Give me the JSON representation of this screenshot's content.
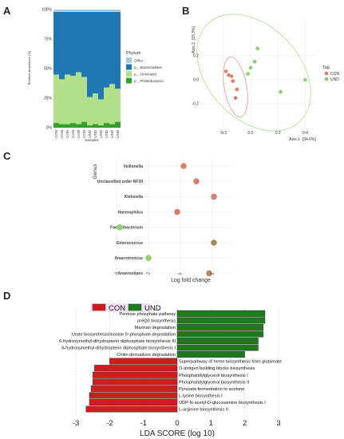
{
  "chart_data": [
    {
      "panel": "A",
      "type": "bar",
      "stacked": true,
      "xlabel": "Samples",
      "ylabel": "Relative abundance (%)",
      "ylim": [
        0,
        100
      ],
      "yticks": [
        "0%",
        "25%",
        "50%",
        "75%",
        "100%"
      ],
      "categories": [
        "CON",
        "CON",
        "CON",
        "CON",
        "CON",
        "CON",
        "UND",
        "UND",
        "UND",
        "UND",
        "UND",
        "UND"
      ],
      "legend_title": "Phylum",
      "series": [
        {
          "name": "p__Proteobacteria",
          "color": "#33a02c",
          "values": [
            4,
            3,
            3,
            4,
            3,
            5,
            2,
            3,
            2,
            4,
            3,
            5
          ]
        },
        {
          "name": "p__Firmicutes",
          "color": "#b2df8a",
          "values": [
            41,
            38,
            42,
            40,
            44,
            38,
            24,
            26,
            22,
            30,
            34,
            28
          ]
        },
        {
          "name": "p__Bacteroidetes",
          "color": "#1f78b4",
          "values": [
            53,
            57,
            53,
            54,
            51,
            55,
            72,
            69,
            74,
            64,
            61,
            65
          ]
        },
        {
          "name": "Other",
          "color": "#a6cee3",
          "values": [
            2,
            2,
            2,
            2,
            2,
            2,
            2,
            2,
            2,
            2,
            2,
            2
          ]
        }
      ]
    },
    {
      "panel": "B",
      "type": "scatter",
      "xlabel": "Axis.1",
      "xlabel_pct": "[34.6%]",
      "ylabel": "Axis.2",
      "ylabel_pct": "[15.3%]",
      "xticks": [
        -0.2,
        0.0,
        0.2,
        0.4
      ],
      "yticks": [
        -0.2,
        0.0,
        0.2
      ],
      "legend_title": "Tag",
      "series": [
        {
          "name": "CON",
          "color": "#e07b6e",
          "points": [
            [
              -0.16,
              0.04
            ],
            [
              -0.14,
              0.03
            ],
            [
              -0.13,
              -0.01
            ],
            [
              -0.1,
              -0.08
            ],
            [
              -0.11,
              -0.15
            ],
            [
              -0.18,
              0.07
            ]
          ]
        },
        {
          "name": "UND",
          "color": "#86cf6d",
          "points": [
            [
              0.05,
              0.26
            ],
            [
              0.03,
              0.15
            ],
            [
              0.0,
              0.1
            ],
            [
              -0.02,
              0.05
            ],
            [
              0.4,
              0.0
            ],
            [
              0.22,
              -0.1
            ]
          ]
        }
      ]
    },
    {
      "panel": "C",
      "type": "scatter",
      "ylabel": "Genus",
      "xlabel": "Log fold change",
      "xticks": [
        -4,
        -2,
        0,
        2
      ],
      "categories": [
        "Veillonella",
        "Unclassified order RF39",
        "Klebsiella",
        "Haemophilus",
        "Faecalibacterium",
        "Enterococcus",
        "Anaerotruncus",
        "Anaerostipes"
      ],
      "values": [
        0.2,
        1.0,
        2.1,
        -0.2,
        -3.8,
        2.1,
        -2.0,
        1.8
      ],
      "colors": [
        "#d8806e",
        "#d8806e",
        "#d8806e",
        "#d8806e",
        "#93cf74",
        "#a78a59",
        "#93cf74",
        "#b38a62"
      ]
    },
    {
      "panel": "D",
      "type": "bar",
      "orientation": "horizontal",
      "xlabel": "LDA SCORE (log 10)",
      "xlim": [
        -3,
        3
      ],
      "xticks": [
        -3,
        -2,
        -1,
        0,
        1,
        2,
        3
      ],
      "legend": [
        {
          "name": "CON",
          "color": "#d01c1c"
        },
        {
          "name": "UND",
          "color": "#1f7a1f"
        }
      ],
      "categories": [
        "Pentose phosphate pathway",
        "preQ0 biosynthesis",
        "Mannan degradation",
        "Urate biosynthesis/inosine 5'-phosphate degradation",
        "6-hydroxymethyl-dihydropterin diphosphate biosynthesis III",
        "6-hydroxymethyl-dihydropterin diphosphate biosynthesis I",
        "Chitin derivatives degradation",
        "Superpathway of heme biosynthesis from glutamate",
        "O-antigen building blocks biosynthesis",
        "Phosphatidylglycerol biosynthesis I",
        "Phosphatidylglycerol biosynthesis II",
        "Pyruvate fermentation to acetone",
        "L-lysine biosynthesis I",
        "UDP-N-acetyl-D-glucosamine biosynthesis I",
        "L-arginine biosynthesis II"
      ],
      "values": [
        2.6,
        2.6,
        2.55,
        2.55,
        2.4,
        2.4,
        2.0,
        -2.0,
        -2.45,
        -2.5,
        -2.5,
        -2.55,
        -2.6,
        -2.6,
        -2.7
      ],
      "groups": [
        "UND",
        "UND",
        "UND",
        "UND",
        "UND",
        "UND",
        "UND",
        "CON",
        "CON",
        "CON",
        "CON",
        "CON",
        "CON",
        "CON",
        "CON"
      ]
    }
  ],
  "panel_labels": [
    "A",
    "B",
    "C",
    "D"
  ]
}
